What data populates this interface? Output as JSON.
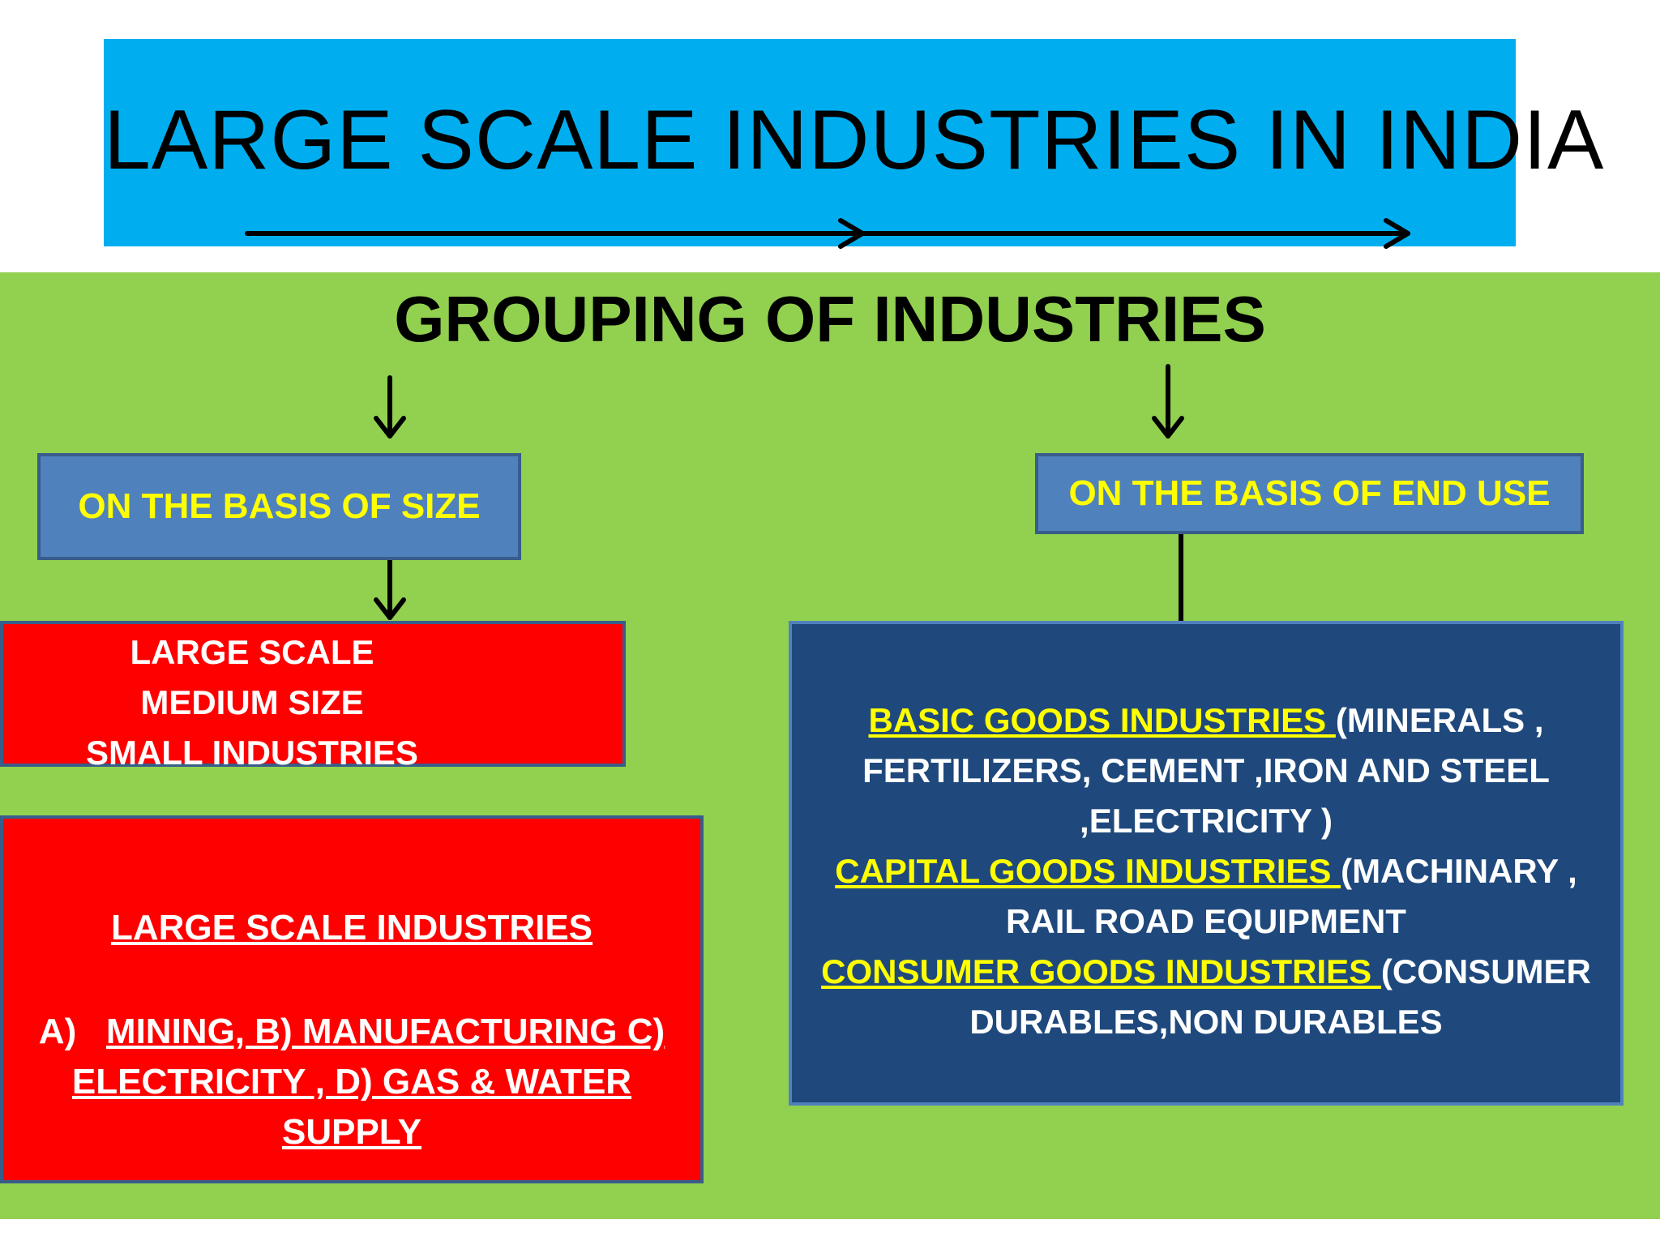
{
  "title": "LARGE SCALE INDUSTRIES IN INDIA",
  "subtitle": "GROUPING OF INDUSTRIES",
  "size_branch": {
    "header": "ON THE BASIS OF SIZE",
    "categories": [
      "LARGE  SCALE",
      "MEDIUM SIZE",
      "SMALL INDUSTRIES"
    ]
  },
  "large_scale_box": {
    "title": "LARGE SCALE INDUSTRIES",
    "prefix": "A)",
    "line1": "MINING, B) MANUFACTURING C)",
    "line2": "ELECTRICITY , D) GAS & WATER SUPPLY"
  },
  "end_use_branch": {
    "header": "ON THE BASIS OF END USE",
    "items": [
      {
        "name": "BASIC GOODS INDUSTRIES ",
        "detail": "(MINERALS ,",
        "lines": [
          "FERTILIZERS, CEMENT ,IRON AND STEEL",
          ",ELECTRICITY )"
        ]
      },
      {
        "name": "CAPITAL GOODS INDUSTRIES ",
        "detail": "(MACHINARY ,",
        "lines": [
          "RAIL ROAD EQUIPMENT"
        ]
      },
      {
        "name": "CONSUMER GOODS INDUSTRIES ",
        "detail": "(CONSUMER",
        "lines": [
          "DURABLES,NON DURABLES"
        ]
      }
    ]
  },
  "colors": {
    "title_bg": "#00aeef",
    "panel_bg": "#92d050",
    "header_bg": "#4f81bd",
    "header_text": "#ffff00",
    "red_box": "#ff0000",
    "navy_box": "#1f497d"
  }
}
